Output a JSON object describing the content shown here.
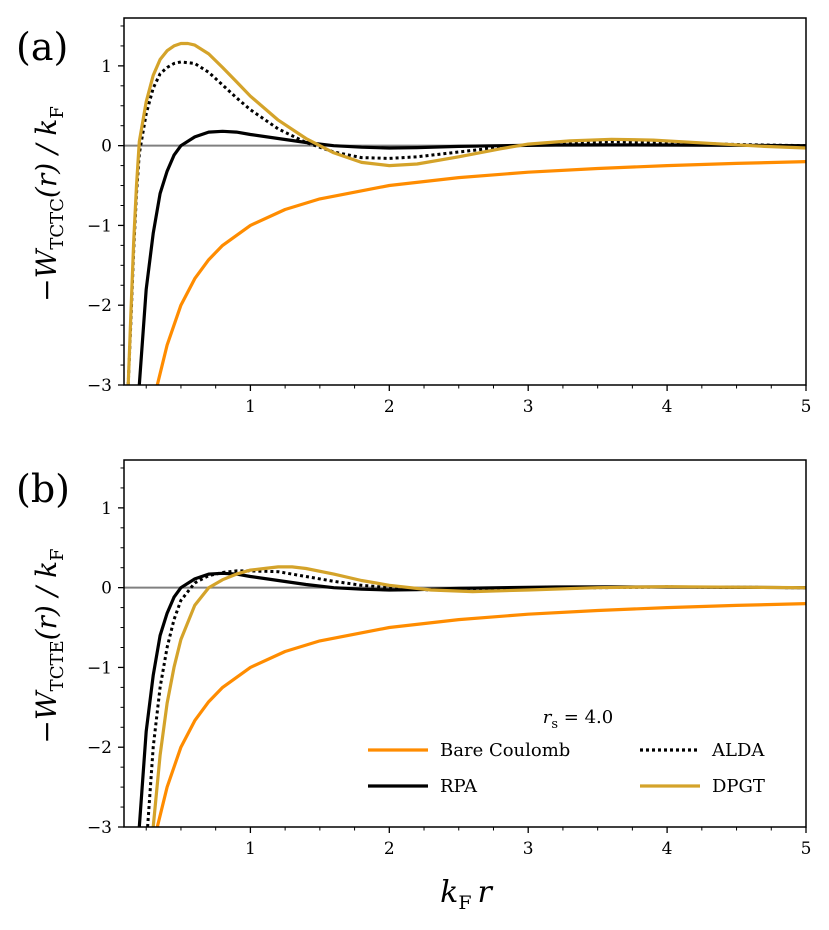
{
  "chart_data": [
    {
      "type": "line",
      "panel_label": "(a)",
      "ylabel": "−W_TCTC(r) / k_F",
      "ylabel_main": "−W",
      "ylabel_sub": "TCTC",
      "ylabel_tail": "(r) / k",
      "ylabel_tail_sub": "F",
      "xlabel": "",
      "xlim": [
        0.09,
        5.0
      ],
      "ylim": [
        -3.0,
        1.6
      ],
      "x_ticks": [
        "1",
        "2",
        "3",
        "4",
        "5"
      ],
      "y_ticks": [
        "−3",
        "−2",
        "−1",
        "0",
        "1"
      ],
      "zero_line": true,
      "series": [
        {
          "name": "Bare Coulomb",
          "color": "#ff8c00",
          "style": "solid",
          "points": [
            [
              0.33,
              -3.0
            ],
            [
              0.4,
              -2.5
            ],
            [
              0.5,
              -2.0
            ],
            [
              0.6,
              -1.667
            ],
            [
              0.7,
              -1.429
            ],
            [
              0.8,
              -1.25
            ],
            [
              1.0,
              -1.0
            ],
            [
              1.25,
              -0.8
            ],
            [
              1.5,
              -0.667
            ],
            [
              2.0,
              -0.5
            ],
            [
              2.5,
              -0.4
            ],
            [
              3.0,
              -0.333
            ],
            [
              3.5,
              -0.286
            ],
            [
              4.0,
              -0.25
            ],
            [
              4.5,
              -0.222
            ],
            [
              5.0,
              -0.2
            ]
          ]
        },
        {
          "name": "RPA",
          "color": "#000000",
          "style": "solid",
          "points": [
            [
              0.2,
              -3.0
            ],
            [
              0.25,
              -1.8
            ],
            [
              0.3,
              -1.1
            ],
            [
              0.35,
              -0.6
            ],
            [
              0.4,
              -0.32
            ],
            [
              0.45,
              -0.12
            ],
            [
              0.5,
              0.0
            ],
            [
              0.6,
              0.11
            ],
            [
              0.7,
              0.17
            ],
            [
              0.8,
              0.18
            ],
            [
              0.9,
              0.17
            ],
            [
              1.0,
              0.14
            ],
            [
              1.2,
              0.09
            ],
            [
              1.4,
              0.04
            ],
            [
              1.6,
              0.0
            ],
            [
              1.8,
              -0.02
            ],
            [
              2.0,
              -0.03
            ],
            [
              2.2,
              -0.025
            ],
            [
              2.5,
              -0.01
            ],
            [
              2.8,
              0.0
            ],
            [
              3.2,
              0.008
            ],
            [
              3.6,
              0.01
            ],
            [
              4.0,
              0.008
            ],
            [
              4.5,
              0.004
            ],
            [
              5.0,
              0.0
            ]
          ]
        },
        {
          "name": "ALDA",
          "color": "#000000",
          "style": "dotted",
          "points": [
            [
              0.12,
              -3.0
            ],
            [
              0.14,
              -2.2
            ],
            [
              0.16,
              -1.3
            ],
            [
              0.18,
              -0.6
            ],
            [
              0.2,
              -0.1
            ],
            [
              0.25,
              0.4
            ],
            [
              0.3,
              0.72
            ],
            [
              0.35,
              0.9
            ],
            [
              0.4,
              0.98
            ],
            [
              0.45,
              1.03
            ],
            [
              0.5,
              1.05
            ],
            [
              0.6,
              1.03
            ],
            [
              0.7,
              0.92
            ],
            [
              0.8,
              0.76
            ],
            [
              0.9,
              0.6
            ],
            [
              1.0,
              0.45
            ],
            [
              1.2,
              0.21
            ],
            [
              1.4,
              0.04
            ],
            [
              1.6,
              -0.08
            ],
            [
              1.8,
              -0.15
            ],
            [
              2.0,
              -0.16
            ],
            [
              2.2,
              -0.14
            ],
            [
              2.5,
              -0.08
            ],
            [
              2.8,
              -0.02
            ],
            [
              3.0,
              0.01
            ],
            [
              3.3,
              0.04
            ],
            [
              3.6,
              0.05
            ],
            [
              4.0,
              0.04
            ],
            [
              4.5,
              0.015
            ],
            [
              5.0,
              0.0
            ]
          ]
        },
        {
          "name": "DPGT",
          "color": "#d4a32a",
          "style": "solid",
          "points": [
            [
              0.12,
              -3.0
            ],
            [
              0.14,
              -2.1
            ],
            [
              0.16,
              -1.2
            ],
            [
              0.18,
              -0.5
            ],
            [
              0.2,
              0.05
            ],
            [
              0.25,
              0.55
            ],
            [
              0.3,
              0.88
            ],
            [
              0.35,
              1.08
            ],
            [
              0.4,
              1.19
            ],
            [
              0.45,
              1.25
            ],
            [
              0.5,
              1.28
            ],
            [
              0.55,
              1.28
            ],
            [
              0.6,
              1.26
            ],
            [
              0.7,
              1.15
            ],
            [
              0.8,
              0.98
            ],
            [
              0.9,
              0.8
            ],
            [
              1.0,
              0.62
            ],
            [
              1.2,
              0.32
            ],
            [
              1.4,
              0.09
            ],
            [
              1.6,
              -0.09
            ],
            [
              1.8,
              -0.21
            ],
            [
              2.0,
              -0.25
            ],
            [
              2.2,
              -0.23
            ],
            [
              2.5,
              -0.14
            ],
            [
              2.8,
              -0.04
            ],
            [
              3.0,
              0.02
            ],
            [
              3.3,
              0.06
            ],
            [
              3.6,
              0.08
            ],
            [
              3.9,
              0.07
            ],
            [
              4.3,
              0.03
            ],
            [
              4.7,
              -0.01
            ],
            [
              5.0,
              -0.03
            ]
          ]
        }
      ]
    },
    {
      "type": "line",
      "panel_label": "(b)",
      "ylabel": "−W_TCTE(r) / k_F",
      "ylabel_main": "−W",
      "ylabel_sub": "TCTE",
      "ylabel_tail": "(r) / k",
      "ylabel_tail_sub": "F",
      "xlabel": "k_F r",
      "xlabel_main": "k",
      "xlabel_sub": "F",
      "xlabel_tail": "r",
      "xlim": [
        0.09,
        5.0
      ],
      "ylim": [
        -3.0,
        1.6
      ],
      "x_ticks": [
        "1",
        "2",
        "3",
        "4",
        "5"
      ],
      "y_ticks": [
        "−3",
        "−2",
        "−1",
        "0",
        "1"
      ],
      "zero_line": true,
      "series": [
        {
          "name": "Bare Coulomb",
          "color": "#ff8c00",
          "style": "solid",
          "points": [
            [
              0.33,
              -3.0
            ],
            [
              0.4,
              -2.5
            ],
            [
              0.5,
              -2.0
            ],
            [
              0.6,
              -1.667
            ],
            [
              0.7,
              -1.429
            ],
            [
              0.8,
              -1.25
            ],
            [
              1.0,
              -1.0
            ],
            [
              1.25,
              -0.8
            ],
            [
              1.5,
              -0.667
            ],
            [
              2.0,
              -0.5
            ],
            [
              2.5,
              -0.4
            ],
            [
              3.0,
              -0.333
            ],
            [
              3.5,
              -0.286
            ],
            [
              4.0,
              -0.25
            ],
            [
              4.5,
              -0.222
            ],
            [
              5.0,
              -0.2
            ]
          ]
        },
        {
          "name": "RPA",
          "color": "#000000",
          "style": "solid",
          "points": [
            [
              0.2,
              -3.0
            ],
            [
              0.25,
              -1.8
            ],
            [
              0.3,
              -1.1
            ],
            [
              0.35,
              -0.6
            ],
            [
              0.4,
              -0.32
            ],
            [
              0.45,
              -0.12
            ],
            [
              0.5,
              0.0
            ],
            [
              0.6,
              0.11
            ],
            [
              0.7,
              0.17
            ],
            [
              0.8,
              0.18
            ],
            [
              0.9,
              0.17
            ],
            [
              1.0,
              0.14
            ],
            [
              1.2,
              0.09
            ],
            [
              1.4,
              0.04
            ],
            [
              1.6,
              0.0
            ],
            [
              1.8,
              -0.02
            ],
            [
              2.0,
              -0.03
            ],
            [
              2.2,
              -0.025
            ],
            [
              2.5,
              -0.01
            ],
            [
              2.8,
              0.0
            ],
            [
              3.2,
              0.008
            ],
            [
              3.6,
              0.01
            ],
            [
              4.0,
              0.008
            ],
            [
              4.5,
              0.004
            ],
            [
              5.0,
              0.0
            ]
          ]
        },
        {
          "name": "ALDA",
          "color": "#000000",
          "style": "dotted",
          "points": [
            [
              0.26,
              -3.0
            ],
            [
              0.3,
              -2.0
            ],
            [
              0.35,
              -1.25
            ],
            [
              0.4,
              -0.75
            ],
            [
              0.45,
              -0.4
            ],
            [
              0.5,
              -0.16
            ],
            [
              0.6,
              0.06
            ],
            [
              0.7,
              0.15
            ],
            [
              0.8,
              0.19
            ],
            [
              0.9,
              0.21
            ],
            [
              1.0,
              0.21
            ],
            [
              1.2,
              0.2
            ],
            [
              1.4,
              0.14
            ],
            [
              1.6,
              0.08
            ],
            [
              1.8,
              0.03
            ],
            [
              2.0,
              0.0
            ],
            [
              2.3,
              -0.03
            ],
            [
              2.6,
              -0.035
            ],
            [
              3.0,
              -0.02
            ],
            [
              3.5,
              0.0
            ],
            [
              4.0,
              0.01
            ],
            [
              4.5,
              0.005
            ],
            [
              5.0,
              0.0
            ]
          ]
        },
        {
          "name": "DPGT",
          "color": "#d4a32a",
          "style": "solid",
          "points": [
            [
              0.3,
              -3.0
            ],
            [
              0.35,
              -2.1
            ],
            [
              0.4,
              -1.45
            ],
            [
              0.45,
              -1.0
            ],
            [
              0.5,
              -0.65
            ],
            [
              0.6,
              -0.22
            ],
            [
              0.7,
              0.0
            ],
            [
              0.8,
              0.1
            ],
            [
              0.9,
              0.17
            ],
            [
              1.0,
              0.22
            ],
            [
              1.1,
              0.24
            ],
            [
              1.2,
              0.26
            ],
            [
              1.3,
              0.26
            ],
            [
              1.4,
              0.24
            ],
            [
              1.6,
              0.17
            ],
            [
              1.8,
              0.09
            ],
            [
              2.0,
              0.03
            ],
            [
              2.3,
              -0.03
            ],
            [
              2.6,
              -0.05
            ],
            [
              3.0,
              -0.03
            ],
            [
              3.5,
              0.0
            ],
            [
              4.0,
              0.012
            ],
            [
              4.5,
              0.006
            ],
            [
              5.0,
              0.0
            ]
          ]
        }
      ],
      "legend": {
        "title": "r_s = 4.0",
        "title_main": "r",
        "title_sub": "s",
        "title_tail": " = 4.0",
        "placement": "lower-right",
        "entries": [
          "Bare Coulomb",
          "ALDA",
          "RPA",
          "DPGT"
        ]
      }
    }
  ]
}
